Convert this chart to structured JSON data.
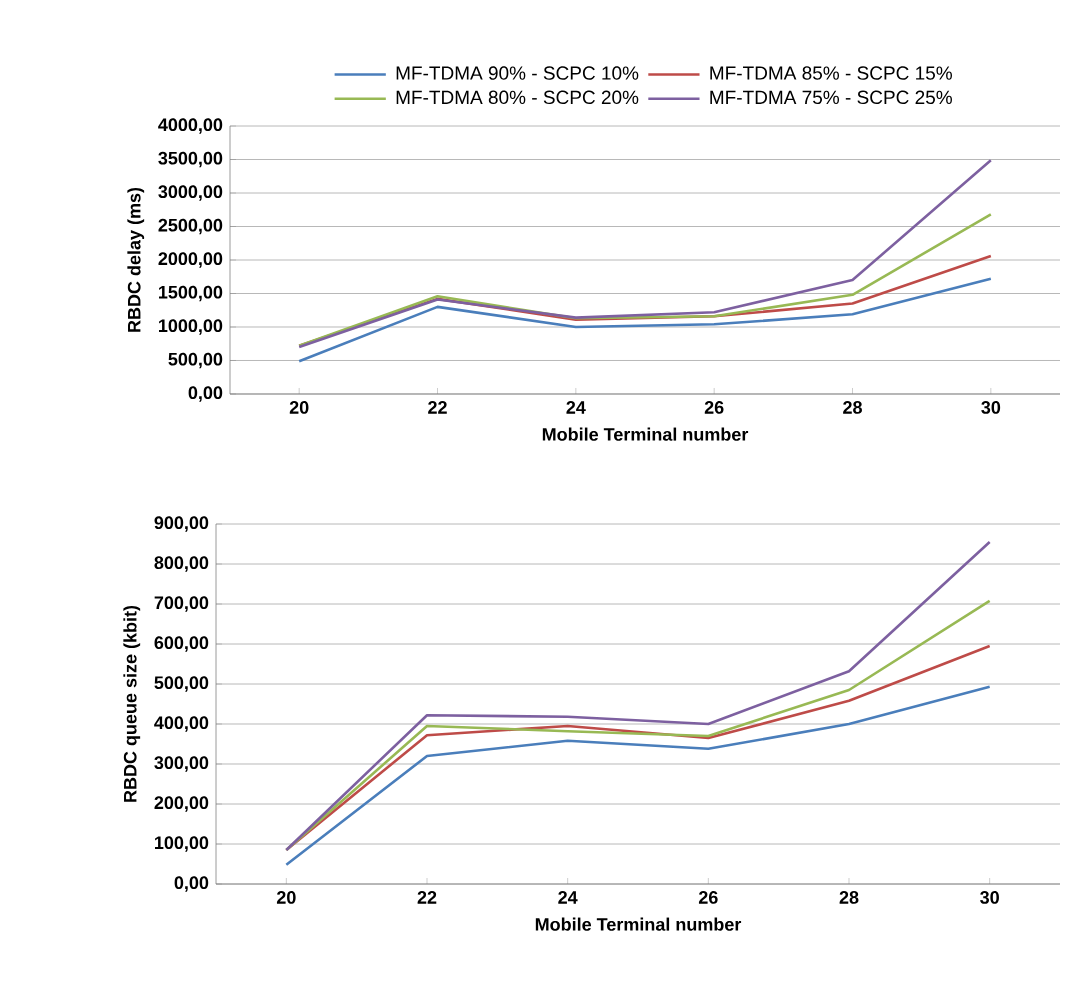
{
  "chart_data": [
    {
      "type": "line",
      "xlabel": "Mobile Terminal number",
      "ylabel": "RBDC delay (ms)",
      "categories": [
        "20",
        "22",
        "24",
        "26",
        "28",
        "30"
      ],
      "ylim": [
        0,
        4000
      ],
      "yticks": [
        {
          "value": 0,
          "label": "0,00"
        },
        {
          "value": 500,
          "label": "500,00"
        },
        {
          "value": 1000,
          "label": "1000,00"
        },
        {
          "value": 1500,
          "label": "1500,00"
        },
        {
          "value": 2000,
          "label": "2000,00"
        },
        {
          "value": 2500,
          "label": "2500,00"
        },
        {
          "value": 3000,
          "label": "3000,00"
        },
        {
          "value": 3500,
          "label": "3500,00"
        },
        {
          "value": 4000,
          "label": "4000,00"
        }
      ],
      "grid": "y",
      "legend": "top",
      "marker": "none",
      "line_style": "solid",
      "series": [
        {
          "name": "MF-TDMA 90% - SCPC 10%",
          "color": "#4a7ebb",
          "values": [
            490,
            1300,
            1000,
            1040,
            1190,
            1720
          ]
        },
        {
          "name": "MF-TDMA 85% - SCPC 15%",
          "color": "#be4b48",
          "values": [
            720,
            1420,
            1110,
            1160,
            1350,
            2060
          ]
        },
        {
          "name": "MF-TDMA 80% - SCPC 20%",
          "color": "#98b954",
          "values": [
            720,
            1460,
            1130,
            1160,
            1480,
            2680
          ]
        },
        {
          "name": "MF-TDMA 75% - SCPC 25%",
          "color": "#7d60a0",
          "values": [
            700,
            1410,
            1140,
            1220,
            1700,
            3490
          ]
        }
      ]
    },
    {
      "type": "line",
      "xlabel": "Mobile Terminal number",
      "ylabel": "RBDC queue size (kbit)",
      "categories": [
        "20",
        "22",
        "24",
        "26",
        "28",
        "30"
      ],
      "ylim": [
        0,
        900
      ],
      "yticks": [
        {
          "value": 0,
          "label": "0,00"
        },
        {
          "value": 100,
          "label": "100,00"
        },
        {
          "value": 200,
          "label": "200,00"
        },
        {
          "value": 300,
          "label": "300,00"
        },
        {
          "value": 400,
          "label": "400,00"
        },
        {
          "value": 500,
          "label": "500,00"
        },
        {
          "value": 600,
          "label": "600,00"
        },
        {
          "value": 700,
          "label": "700,00"
        },
        {
          "value": 800,
          "label": "800,00"
        },
        {
          "value": 900,
          "label": "900,00"
        }
      ],
      "grid": "y",
      "marker": "none",
      "line_style": "solid",
      "series": [
        {
          "color": "#4a7ebb",
          "values": [
            48,
            320,
            358,
            338,
            400,
            493
          ]
        },
        {
          "color": "#be4b48",
          "values": [
            85,
            372,
            395,
            365,
            458,
            595
          ]
        },
        {
          "color": "#98b954",
          "values": [
            85,
            395,
            382,
            370,
            485,
            708
          ]
        },
        {
          "color": "#7d60a0",
          "values": [
            85,
            422,
            418,
            400,
            532,
            855
          ]
        }
      ]
    }
  ]
}
